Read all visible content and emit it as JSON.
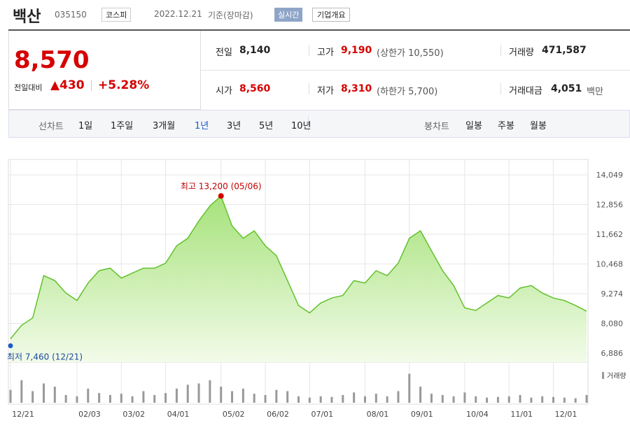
{
  "header": {
    "name": "백산",
    "code": "035150",
    "market": "코스피",
    "date": "2022.12.21",
    "basis": "기준(장마감)",
    "realtime": "실시간",
    "company": "기업개요"
  },
  "summary": {
    "price": "8,570",
    "change_label": "전일대비",
    "change": "430",
    "change_rate": "+5.28%",
    "cells": [
      {
        "label": "전일",
        "value": "8,140"
      },
      {
        "label": "고가",
        "value": "9,190",
        "note": "(상한가 10,550)"
      },
      {
        "label": "거래량",
        "value": "471,587"
      },
      {
        "label": "시가",
        "value": "8,560"
      },
      {
        "label": "저가",
        "value": "8,310",
        "note": "(하한가 5,700)"
      },
      {
        "label": "거래대금",
        "value": "4,051",
        "note": "백만"
      }
    ]
  },
  "tabs": {
    "line_label": "선차트",
    "line_periods": [
      "1일",
      "1주일",
      "3개월",
      "1년",
      "3년",
      "5년",
      "10년"
    ],
    "active": "1년",
    "candle_label": "봉차트",
    "candle_periods": [
      "일봉",
      "주봉",
      "월봉"
    ]
  },
  "chart_data": [
    {
      "type": "line",
      "color": "#62c12c",
      "fill": "#c8f0a8",
      "categories": [
        "12/21",
        null,
        null,
        null,
        null,
        null,
        "02/03",
        null,
        null,
        null,
        "03/02",
        null,
        null,
        null,
        "04/01",
        null,
        null,
        null,
        null,
        "05/02",
        null,
        null,
        null,
        "06/02",
        null,
        null,
        null,
        "07/01",
        null,
        null,
        null,
        null,
        "08/01",
        null,
        null,
        null,
        "09/01",
        null,
        null,
        null,
        null,
        "10/04",
        null,
        null,
        null,
        "11/01",
        null,
        null,
        null,
        "12/01",
        null,
        null,
        null
      ],
      "values": [
        7460,
        8000,
        8300,
        10000,
        9800,
        9300,
        9000,
        9700,
        10200,
        10300,
        9900,
        10100,
        10300,
        10300,
        10500,
        11200,
        11500,
        12200,
        12800,
        13200,
        12000,
        11500,
        11800,
        11200,
        10800,
        9800,
        8800,
        8500,
        8900,
        9100,
        9200,
        9800,
        9700,
        10200,
        10000,
        10500,
        11500,
        11800,
        11000,
        10200,
        9600,
        8700,
        8600,
        8900,
        9200,
        9100,
        9500,
        9600,
        9300,
        9100,
        9000,
        8800,
        8570
      ],
      "ylim": [
        6520,
        14670
      ],
      "yticks": [
        {
          "value": 6886,
          "label": "6,886"
        },
        {
          "value": 8080,
          "label": "8,080"
        },
        {
          "value": 9274,
          "label": "9,274"
        },
        {
          "value": 10468,
          "label": "10,468"
        },
        {
          "value": 11662,
          "label": "11,662"
        },
        {
          "value": 12856,
          "label": "12,856"
        },
        {
          "value": 14049,
          "label": "14,049"
        }
      ],
      "grid": true,
      "high": {
        "label": "최고",
        "value": 13200,
        "value_label": "13,200",
        "date": "(05/06)",
        "index": 19
      },
      "low": {
        "label": "최저",
        "value": 7460,
        "value_label": "7,460",
        "date": "(12/21)",
        "index": 0
      }
    },
    {
      "type": "bar",
      "name": "거래량",
      "color": "#999999",
      "ylim": [
        0,
        50
      ],
      "values": [
        20,
        35,
        18,
        30,
        25,
        12,
        10,
        22,
        15,
        12,
        14,
        10,
        18,
        12,
        15,
        22,
        28,
        30,
        35,
        25,
        18,
        22,
        14,
        12,
        20,
        18,
        10,
        8,
        10,
        9,
        12,
        16,
        10,
        14,
        10,
        18,
        45,
        25,
        14,
        12,
        10,
        16,
        10,
        8,
        9,
        10,
        12,
        8,
        10,
        9,
        8,
        7,
        12
      ]
    }
  ]
}
